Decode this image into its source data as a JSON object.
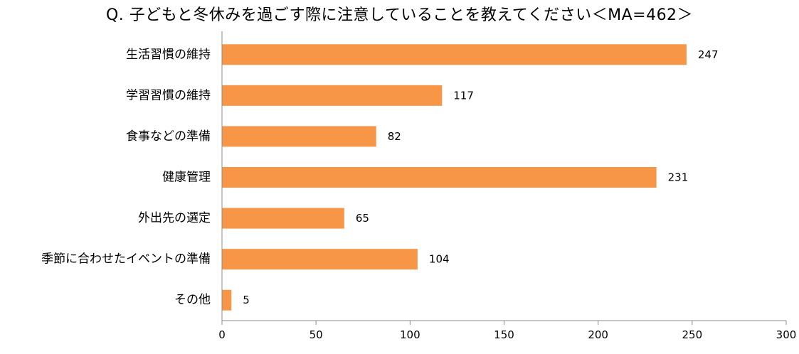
{
  "chart_data": {
    "type": "bar",
    "orientation": "horizontal",
    "title": "Q. 子どもと冬休みを過ごす際に注意していることを教えてください＜MA=462＞",
    "categories": [
      "生活習慣の維持",
      "学習習慣の維持",
      "食事などの準備",
      "健康管理",
      "外出先の選定",
      "季節に合わせたイベントの準備",
      "その他"
    ],
    "values": [
      247,
      117,
      82,
      231,
      65,
      104,
      5
    ],
    "xlim": [
      0,
      300
    ],
    "xticks": [
      0,
      50,
      100,
      150,
      200,
      250,
      300
    ],
    "xlabel": "",
    "ylabel": "",
    "grid": false,
    "legend": "none",
    "bar_color": "#F79646"
  }
}
